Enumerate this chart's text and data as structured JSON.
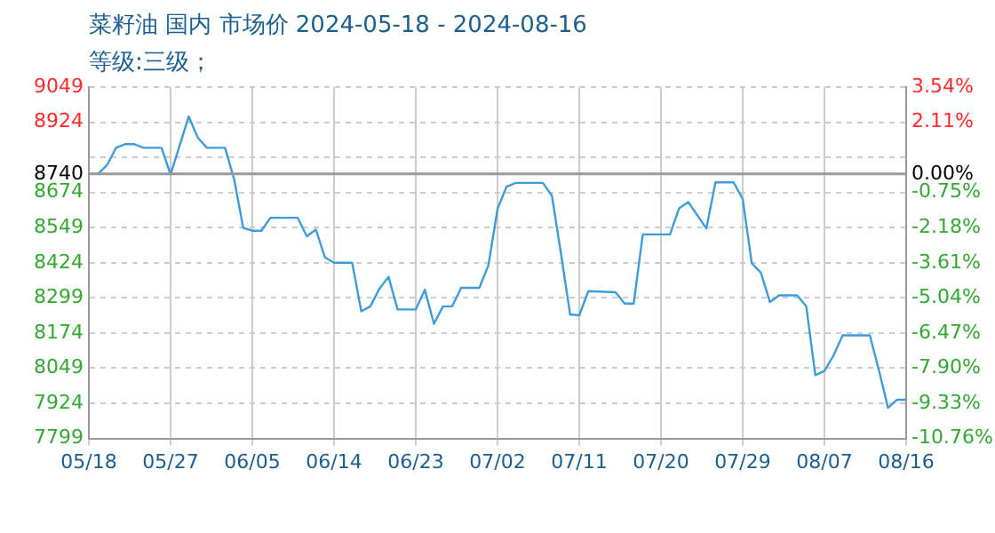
{
  "chart_data": {
    "type": "line",
    "title": "菜籽油 国内 市场价 2024-05-18 - 2024-08-16",
    "subtitle": "等级:三级；",
    "x": [
      "2024-05-18",
      "2024-05-19",
      "2024-05-20",
      "2024-05-21",
      "2024-05-22",
      "2024-05-23",
      "2024-05-24",
      "2024-05-26",
      "2024-05-27",
      "2024-05-29",
      "2024-05-30",
      "2024-05-31",
      "2024-06-02",
      "2024-06-03",
      "2024-06-04",
      "2024-06-05",
      "2024-06-06",
      "2024-06-07",
      "2024-06-10",
      "2024-06-11",
      "2024-06-12",
      "2024-06-13",
      "2024-06-14",
      "2024-06-16",
      "2024-06-17",
      "2024-06-18",
      "2024-06-19",
      "2024-06-20",
      "2024-06-21",
      "2024-06-23",
      "2024-06-24",
      "2024-06-25",
      "2024-06-26",
      "2024-06-27",
      "2024-06-28",
      "2024-06-30",
      "2024-07-01",
      "2024-07-02",
      "2024-07-03",
      "2024-07-04",
      "2024-07-07",
      "2024-07-08",
      "2024-07-09",
      "2024-07-10",
      "2024-07-11",
      "2024-07-12",
      "2024-07-15",
      "2024-07-16",
      "2024-07-17",
      "2024-07-18",
      "2024-07-21",
      "2024-07-22",
      "2024-07-23",
      "2024-07-25",
      "2024-07-26",
      "2024-07-28",
      "2024-07-29",
      "2024-07-30",
      "2024-07-31",
      "2024-08-01",
      "2024-08-02",
      "2024-08-04",
      "2024-08-05",
      "2024-08-06",
      "2024-08-07",
      "2024-08-08",
      "2024-08-09",
      "2024-08-12",
      "2024-08-13",
      "2024-08-14",
      "2024-08-15",
      "2024-08-16"
    ],
    "series": [
      {
        "color": "#3d9bdb",
        "values": [
          8740,
          8740,
          8771,
          8833,
          8846,
          8846,
          8833,
          8833,
          8738,
          8944,
          8869,
          8833,
          8833,
          8721,
          8548,
          8538,
          8538,
          8584,
          8584,
          8518,
          8542,
          8443,
          8424,
          8424,
          8251,
          8269,
          8332,
          8374,
          8258,
          8258,
          8328,
          8207,
          8269,
          8269,
          8335,
          8335,
          8415,
          8615,
          8695,
          8708,
          8708,
          8662,
          8454,
          8240,
          8237,
          8323,
          8319,
          8279,
          8279,
          8525,
          8525,
          8618,
          8640,
          8546,
          8710,
          8710,
          8651,
          8422,
          8389,
          8284,
          8308,
          8308,
          8269,
          8024,
          8039,
          8094,
          8166,
          8166,
          8042,
          7908,
          7937,
          7937
        ]
      }
    ],
    "xlim": [
      "2024-05-18",
      "2024-08-16"
    ],
    "xticks": [
      {
        "value": "2024-05-18",
        "label": "05/18"
      },
      {
        "value": "2024-05-27",
        "label": "05/27"
      },
      {
        "value": "2024-06-05",
        "label": "06/05"
      },
      {
        "value": "2024-06-14",
        "label": "06/14"
      },
      {
        "value": "2024-06-23",
        "label": "06/23"
      },
      {
        "value": "2024-07-02",
        "label": "07/02"
      },
      {
        "value": "2024-07-11",
        "label": "07/11"
      },
      {
        "value": "2024-07-20",
        "label": "07/20"
      },
      {
        "value": "2024-07-29",
        "label": "07/29"
      },
      {
        "value": "2024-08-07",
        "label": "08/07"
      },
      {
        "value": "2024-08-16",
        "label": "08/16"
      }
    ],
    "ylim": [
      7799,
      9049
    ],
    "yticks": [
      7799,
      7924,
      8049,
      8174,
      8299,
      8424,
      8549,
      8674,
      8740,
      {
        "value": 8799,
        "label": null
      },
      8924,
      9049
    ],
    "y2lim": [
      -10.76,
      3.54
    ],
    "y2ticks": [
      {
        "value": -10.76,
        "label": "-10.76%"
      },
      {
        "value": -9.33,
        "label": "-9.33%"
      },
      {
        "value": -7.9,
        "label": "-7.90%"
      },
      {
        "value": -6.47,
        "label": "-6.47%"
      },
      {
        "value": -5.04,
        "label": "-5.04%"
      },
      {
        "value": -3.61,
        "label": "-3.61%"
      },
      {
        "value": -2.18,
        "label": "-2.18%"
      },
      {
        "value": -0.75,
        "label": "-0.75%"
      },
      {
        "value": 0,
        "label": "0.00%"
      },
      {
        "value": 2.11,
        "label": "2.11%"
      },
      {
        "value": 3.54,
        "label": "3.54%"
      }
    ],
    "ref_lines": [
      {
        "axis": "y",
        "value": 8740,
        "color": "#999999"
      }
    ],
    "grid": true
  }
}
